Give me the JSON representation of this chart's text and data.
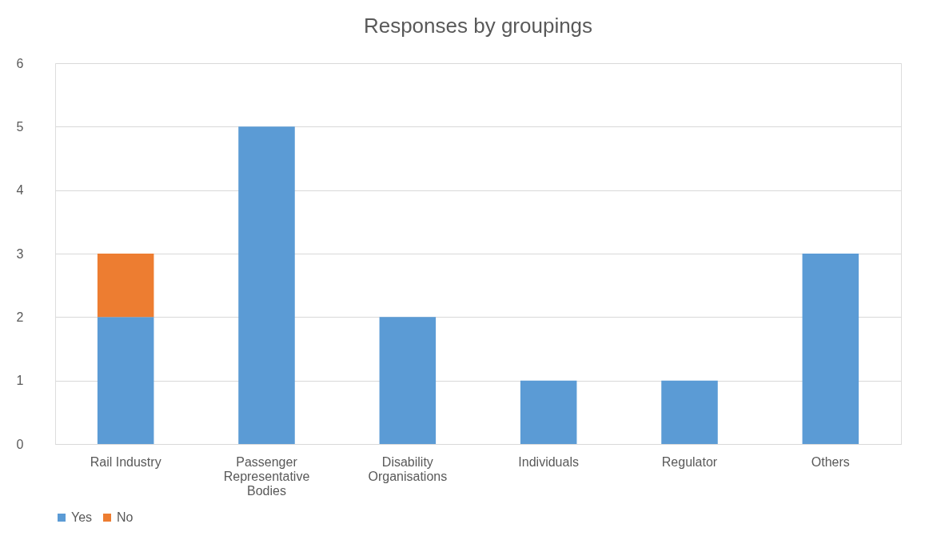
{
  "chart_data": {
    "type": "bar",
    "title": "Responses by groupings",
    "categories": [
      "Rail Industry",
      "Passenger Representative Bodies",
      "Disability Organisations",
      "Individuals",
      "Regulator",
      "Others"
    ],
    "stacked": true,
    "series": [
      {
        "name": "Yes",
        "color": "#5b9bd5",
        "values": [
          2,
          5,
          2,
          1,
          1,
          3
        ]
      },
      {
        "name": "No",
        "color": "#ed7d31",
        "values": [
          1,
          null,
          null,
          null,
          null,
          null
        ]
      }
    ],
    "ylim": [
      0,
      6
    ],
    "yticks": [
      0,
      1,
      2,
      3,
      4,
      5,
      6
    ],
    "grid": "y",
    "legend": "bottom"
  }
}
